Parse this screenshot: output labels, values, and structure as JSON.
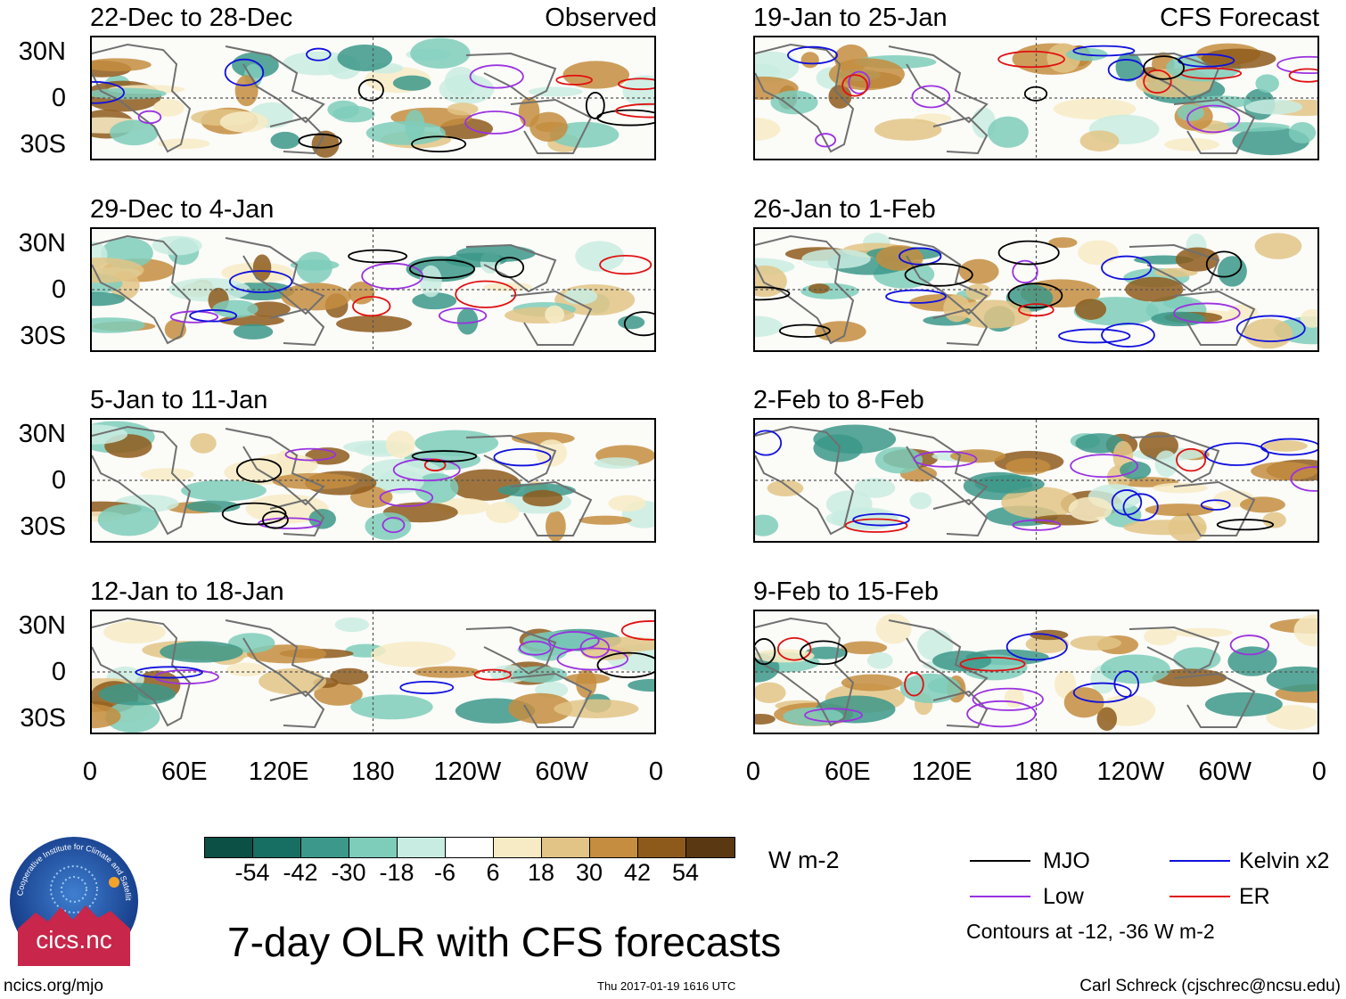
{
  "title": "7-day OLR with CFS forecasts",
  "observed_label": "Observed",
  "forecast_label": "CFS Forecast",
  "panels_observed": [
    {
      "period": "22-Dec to 28-Dec"
    },
    {
      "period": "29-Dec to 4-Jan"
    },
    {
      "period": "5-Jan to 11-Jan"
    },
    {
      "period": "12-Jan to 18-Jan"
    }
  ],
  "panels_forecast": [
    {
      "period": "19-Jan to 25-Jan"
    },
    {
      "period": "26-Jan to 1-Feb"
    },
    {
      "period": "2-Feb to 8-Feb"
    },
    {
      "period": "9-Feb to 15-Feb"
    }
  ],
  "lat_labels": [
    "30N",
    "0",
    "30S"
  ],
  "lon_labels": [
    "0",
    "60E",
    "120E",
    "180",
    "120W",
    "60W",
    "0"
  ],
  "colorbar": {
    "ticks": [
      "-54",
      "-42",
      "-30",
      "-18",
      "-6",
      "6",
      "18",
      "30",
      "42",
      "54"
    ],
    "colors": [
      "#0b4f45",
      "#176e62",
      "#3c988a",
      "#7ecdbb",
      "#c9ece2",
      "#ffffff",
      "#f7ebc6",
      "#e2c486",
      "#c48d3f",
      "#8e5a1c",
      "#5a3812"
    ],
    "units": "W m-2"
  },
  "legend": {
    "items": [
      {
        "label": "MJO",
        "color": "#000000"
      },
      {
        "label": "Kelvin x2",
        "color": "#1010dd"
      },
      {
        "label": "Low",
        "color": "#9a32e0"
      },
      {
        "label": "ER",
        "color": "#e01010"
      }
    ],
    "note": "Contours at -12, -36 W m-2"
  },
  "logo_text": "cics.nc",
  "logo_ring_text": "Cooperative Institute for Climate and Satellites",
  "footer": {
    "url": "ncics.org/mjo",
    "timestamp": "Thu 2017-01-19 1616 UTC",
    "credit": "Carl Schreck (cjschrec@ncsu.edu)"
  }
}
